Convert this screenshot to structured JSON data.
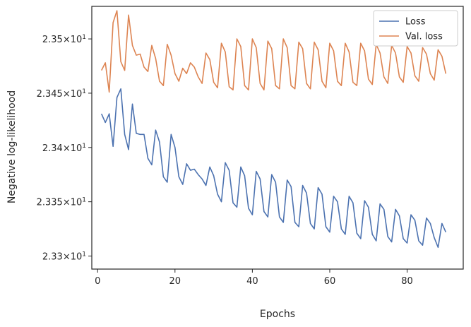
{
  "chart_data": {
    "type": "line",
    "xlabel": "Epochs",
    "ylabel": "Negative log-likelihood",
    "y_scale": "log",
    "xlim": [
      -1.5,
      94.5
    ],
    "ylim": [
      23.3288,
      23.353
    ],
    "x_ticks": [
      {
        "value": 0,
        "label": "0"
      },
      {
        "value": 20,
        "label": "20"
      },
      {
        "value": 40,
        "label": "40"
      },
      {
        "value": 60,
        "label": "60"
      },
      {
        "value": 80,
        "label": "80"
      }
    ],
    "y_ticks": [
      {
        "value": 23.33,
        "mantissa": "2.33",
        "base": "10",
        "exp": "1"
      },
      {
        "value": 23.335,
        "mantissa": "2.335",
        "base": "10",
        "exp": "1"
      },
      {
        "value": 23.34,
        "mantissa": "2.34",
        "base": "10",
        "exp": "1"
      },
      {
        "value": 23.345,
        "mantissa": "2.345",
        "base": "10",
        "exp": "1"
      },
      {
        "value": 23.35,
        "mantissa": "2.35",
        "base": "10",
        "exp": "1"
      }
    ],
    "legend_position": "top-right",
    "x": [
      1,
      2,
      3,
      4,
      5,
      6,
      7,
      8,
      9,
      10,
      11,
      12,
      13,
      14,
      15,
      16,
      17,
      18,
      19,
      20,
      21,
      22,
      23,
      24,
      25,
      26,
      27,
      28,
      29,
      30,
      31,
      32,
      33,
      34,
      35,
      36,
      37,
      38,
      39,
      40,
      41,
      42,
      43,
      44,
      45,
      46,
      47,
      48,
      49,
      50,
      51,
      52,
      53,
      54,
      55,
      56,
      57,
      58,
      59,
      60,
      61,
      62,
      63,
      64,
      65,
      66,
      67,
      68,
      69,
      70,
      71,
      72,
      73,
      74,
      75,
      76,
      77,
      78,
      79,
      80,
      81,
      82,
      83,
      84,
      85,
      86,
      87,
      88,
      89,
      90
    ],
    "series": [
      {
        "name": "Loss",
        "color": "#4c72b0",
        "values": [
          23.3431,
          23.3423,
          23.3431,
          23.3401,
          23.3446,
          23.3454,
          23.3412,
          23.3398,
          23.344,
          23.3413,
          23.3412,
          23.3412,
          23.339,
          23.3384,
          23.3416,
          23.3405,
          23.3373,
          23.3368,
          23.3412,
          23.34,
          23.3373,
          23.3366,
          23.3385,
          23.3379,
          23.338,
          23.3375,
          23.3371,
          23.3365,
          23.3382,
          23.3374,
          23.3357,
          23.335,
          23.3386,
          23.3379,
          23.3349,
          23.3345,
          23.3382,
          23.3374,
          23.3344,
          23.3338,
          23.3378,
          23.3371,
          23.3341,
          23.3336,
          23.3375,
          23.3368,
          23.3336,
          23.3331,
          23.337,
          23.3364,
          23.3331,
          23.3327,
          23.3365,
          23.3358,
          23.333,
          23.3325,
          23.3363,
          23.3357,
          23.3327,
          23.3322,
          23.3355,
          23.335,
          23.3325,
          23.332,
          23.3355,
          23.3349,
          23.3321,
          23.3316,
          23.3351,
          23.3345,
          23.332,
          23.3314,
          23.3348,
          23.3343,
          23.3318,
          23.3313,
          23.3343,
          23.3337,
          23.3316,
          23.3312,
          23.3338,
          23.3333,
          23.3314,
          23.331,
          23.3335,
          23.333,
          23.3317,
          23.3308,
          23.333,
          23.3322
        ]
      },
      {
        "name": "Val. loss",
        "color": "#dd8452",
        "values": [
          23.3471,
          23.3478,
          23.3451,
          23.3515,
          23.3526,
          23.3479,
          23.3471,
          23.3522,
          23.3494,
          23.3485,
          23.3486,
          23.3474,
          23.347,
          23.3494,
          23.3482,
          23.3461,
          23.3457,
          23.3495,
          23.3485,
          23.3468,
          23.3461,
          23.3473,
          23.3468,
          23.3478,
          23.3474,
          23.3465,
          23.3459,
          23.3487,
          23.3481,
          23.346,
          23.3455,
          23.3496,
          23.3488,
          23.3456,
          23.3453,
          23.35,
          23.3493,
          23.3457,
          23.3453,
          23.35,
          23.3492,
          23.3459,
          23.3453,
          23.3498,
          23.3491,
          23.3457,
          23.3454,
          23.35,
          23.3492,
          23.3457,
          23.3454,
          23.3497,
          23.3491,
          23.3459,
          23.3454,
          23.3497,
          23.349,
          23.3461,
          23.3455,
          23.3496,
          23.3489,
          23.3461,
          23.3457,
          23.3496,
          23.3488,
          23.346,
          23.3457,
          23.3496,
          23.3489,
          23.3463,
          23.3458,
          23.3495,
          23.3487,
          23.3465,
          23.3459,
          23.3494,
          23.3487,
          23.3465,
          23.346,
          23.3493,
          23.3487,
          23.3466,
          23.3461,
          23.3492,
          23.3486,
          23.3468,
          23.3462,
          23.349,
          23.3484,
          23.3468
        ]
      }
    ]
  }
}
